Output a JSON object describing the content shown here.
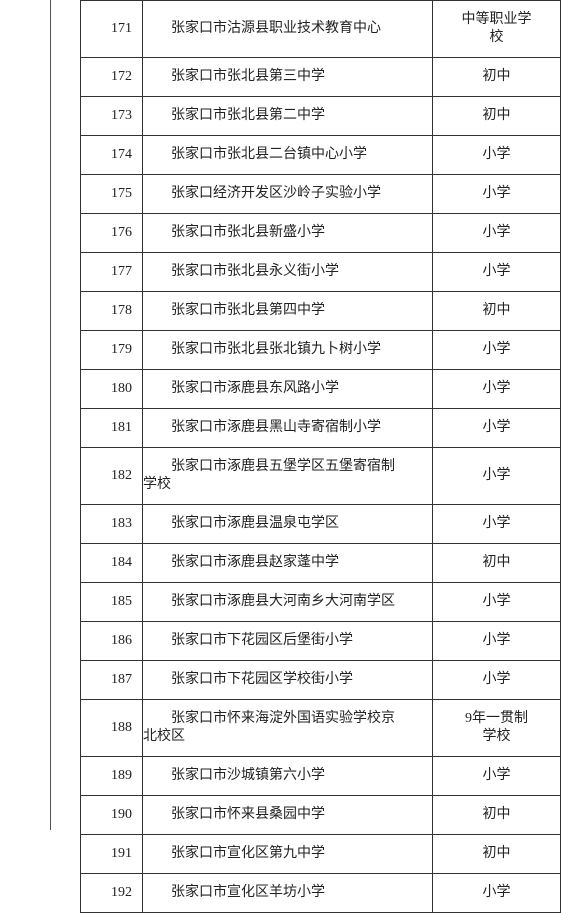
{
  "table": {
    "row_align": {
      "idx": "right",
      "name": "left-indented-first-line",
      "type": "center"
    },
    "border_color": "#333333",
    "font_family": "SimSun",
    "font_size_pt": 10.5,
    "text_color": "#222222",
    "rows": [
      {
        "idx": "171",
        "name_lines": [
          "张家口市沽源县职业技术教育中心"
        ],
        "type_lines": [
          "中等职业学",
          "校"
        ]
      },
      {
        "idx": "172",
        "name_lines": [
          "张家口市张北县第三中学"
        ],
        "type_lines": [
          "初中"
        ]
      },
      {
        "idx": "173",
        "name_lines": [
          "张家口市张北县第二中学"
        ],
        "type_lines": [
          "初中"
        ]
      },
      {
        "idx": "174",
        "name_lines": [
          "张家口市张北县二台镇中心小学"
        ],
        "type_lines": [
          "小学"
        ]
      },
      {
        "idx": "175",
        "name_lines": [
          "张家口经济开发区沙岭子实验小学"
        ],
        "type_lines": [
          "小学"
        ]
      },
      {
        "idx": "176",
        "name_lines": [
          "张家口市张北县新盛小学"
        ],
        "type_lines": [
          "小学"
        ]
      },
      {
        "idx": "177",
        "name_lines": [
          "张家口市张北县永义街小学"
        ],
        "type_lines": [
          "小学"
        ]
      },
      {
        "idx": "178",
        "name_lines": [
          "张家口市张北县第四中学"
        ],
        "type_lines": [
          "初中"
        ]
      },
      {
        "idx": "179",
        "name_lines": [
          "张家口市张北县张北镇九卜树小学"
        ],
        "type_lines": [
          "小学"
        ]
      },
      {
        "idx": "180",
        "name_lines": [
          "张家口市涿鹿县东风路小学"
        ],
        "type_lines": [
          "小学"
        ]
      },
      {
        "idx": "181",
        "name_lines": [
          "张家口市涿鹿县黑山寺寄宿制小学"
        ],
        "type_lines": [
          "小学"
        ]
      },
      {
        "idx": "182",
        "name_lines": [
          "张家口市涿鹿县五堡学区五堡寄宿制",
          "学校"
        ],
        "type_lines": [
          "小学"
        ]
      },
      {
        "idx": "183",
        "name_lines": [
          "张家口市涿鹿县温泉屯学区"
        ],
        "type_lines": [
          "小学"
        ]
      },
      {
        "idx": "184",
        "name_lines": [
          "张家口市涿鹿县赵家蓬中学"
        ],
        "type_lines": [
          "初中"
        ]
      },
      {
        "idx": "185",
        "name_lines": [
          "张家口市涿鹿县大河南乡大河南学区"
        ],
        "type_lines": [
          "小学"
        ]
      },
      {
        "idx": "186",
        "name_lines": [
          "张家口市下花园区后堡街小学"
        ],
        "type_lines": [
          "小学"
        ]
      },
      {
        "idx": "187",
        "name_lines": [
          "张家口市下花园区学校街小学"
        ],
        "type_lines": [
          "小学"
        ]
      },
      {
        "idx": "188",
        "name_lines": [
          "张家口市怀来海淀外国语实验学校京",
          "北校区"
        ],
        "type_lines": [
          "9年一贯制",
          "学校"
        ]
      },
      {
        "idx": "189",
        "name_lines": [
          "张家口市沙城镇第六小学"
        ],
        "type_lines": [
          "小学"
        ]
      },
      {
        "idx": "190",
        "name_lines": [
          "张家口市怀来县桑园中学"
        ],
        "type_lines": [
          "初中"
        ]
      },
      {
        "idx": "191",
        "name_lines": [
          "张家口市宣化区第九中学"
        ],
        "type_lines": [
          "初中"
        ]
      },
      {
        "idx": "192",
        "name_lines": [
          "张家口市宣化区羊坊小学"
        ],
        "type_lines": [
          "小学"
        ]
      }
    ]
  }
}
